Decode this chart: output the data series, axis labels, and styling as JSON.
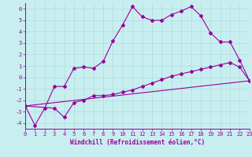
{
  "xlabel": "Windchill (Refroidissement éolien,°C)",
  "xlim": [
    0,
    23
  ],
  "ylim": [
    -4.5,
    6.5
  ],
  "yticks": [
    -4,
    -3,
    -2,
    -1,
    0,
    1,
    2,
    3,
    4,
    5,
    6
  ],
  "xticks": [
    0,
    1,
    2,
    3,
    4,
    5,
    6,
    7,
    8,
    9,
    10,
    11,
    12,
    13,
    14,
    15,
    16,
    17,
    18,
    19,
    20,
    21,
    22,
    23
  ],
  "background_color": "#c8eef0",
  "grid_color": "#a8d8dc",
  "line_color": "#990099",
  "axis_color": "#660066",
  "line1_x": [
    0,
    1,
    2,
    3,
    4,
    5,
    6,
    7,
    8,
    9,
    10,
    11,
    12,
    13,
    14,
    15,
    16,
    17,
    18,
    19,
    20,
    21,
    22,
    23
  ],
  "line1_y": [
    -2.5,
    -4.2,
    -2.7,
    -0.8,
    -0.8,
    0.8,
    0.9,
    0.8,
    1.4,
    3.2,
    4.6,
    6.2,
    5.3,
    5.0,
    5.0,
    5.5,
    5.8,
    6.2,
    5.4,
    3.9,
    3.1,
    3.1,
    1.5,
    -0.3
  ],
  "line2_x": [
    0,
    3,
    4,
    5,
    6,
    7,
    8,
    9,
    10,
    11,
    12,
    13,
    14,
    15,
    16,
    17,
    18,
    19,
    20,
    21,
    22,
    23
  ],
  "line2_y": [
    -2.5,
    -2.7,
    -3.5,
    -2.2,
    -2.0,
    -1.6,
    -1.6,
    -1.5,
    -1.3,
    -1.1,
    -0.8,
    -0.5,
    -0.2,
    0.1,
    0.3,
    0.5,
    0.7,
    0.9,
    1.1,
    1.3,
    0.9,
    -0.3
  ],
  "line3_x": [
    0,
    23
  ],
  "line3_y": [
    -2.5,
    -0.3
  ],
  "markersize": 2.0,
  "linewidth": 0.8,
  "tick_labelsize": 5.0,
  "xlabel_fontsize": 5.5
}
